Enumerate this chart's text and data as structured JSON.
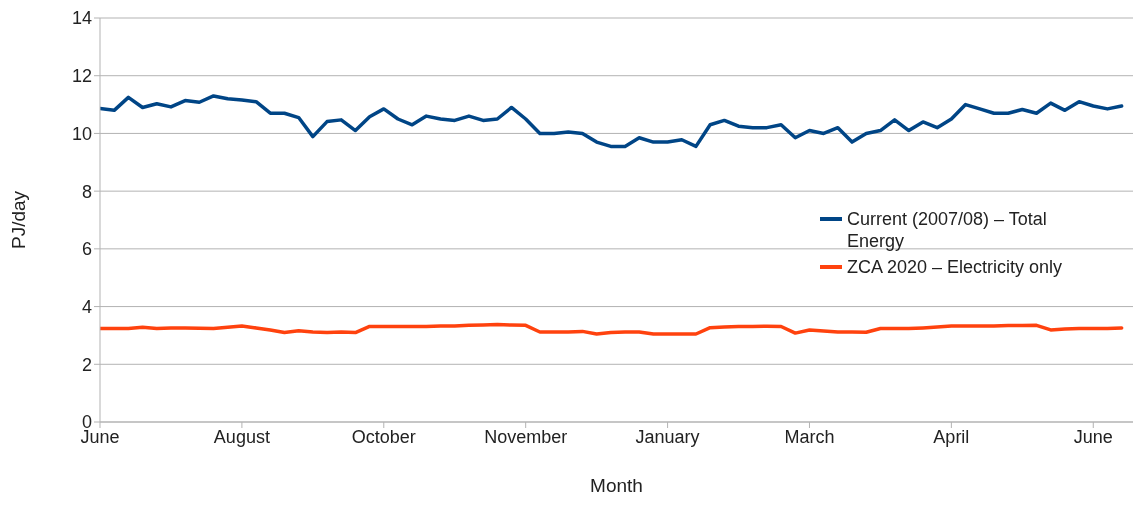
{
  "chart_data": {
    "type": "line",
    "xlabel": "Month",
    "ylabel": "PJ/day",
    "categories": [
      "June",
      null,
      null,
      null,
      null,
      null,
      null,
      null,
      null,
      null,
      "August",
      null,
      null,
      null,
      null,
      null,
      null,
      null,
      null,
      null,
      "October",
      null,
      null,
      null,
      null,
      null,
      null,
      null,
      null,
      null,
      "November",
      null,
      null,
      null,
      null,
      null,
      null,
      null,
      null,
      null,
      "January",
      null,
      null,
      null,
      null,
      null,
      null,
      null,
      null,
      null,
      "March",
      null,
      null,
      null,
      null,
      null,
      null,
      null,
      null,
      null,
      "April",
      null,
      null,
      null,
      null,
      null,
      null,
      null,
      null,
      null,
      "June",
      null,
      null
    ],
    "ylim": [
      0,
      14
    ],
    "yticks": [
      0,
      2,
      4,
      6,
      8,
      10,
      12,
      14
    ],
    "grid": "y",
    "legend": "right",
    "marker": "none",
    "line_style": "solid",
    "series": [
      {
        "name": "Current (2007/08) – Total Energy",
        "color": "#004586",
        "values": [
          10.86,
          10.8,
          11.25,
          10.9,
          11.03,
          10.92,
          11.14,
          11.08,
          11.3,
          11.2,
          11.16,
          11.1,
          10.7,
          10.7,
          10.55,
          9.89,
          10.41,
          10.47,
          10.1,
          10.58,
          10.85,
          10.5,
          10.3,
          10.6,
          10.5,
          10.45,
          10.6,
          10.45,
          10.5,
          10.9,
          10.5,
          10.0,
          10.0,
          10.05,
          10.0,
          9.7,
          9.55,
          9.55,
          9.85,
          9.7,
          9.7,
          9.78,
          9.55,
          10.3,
          10.45,
          10.25,
          10.2,
          10.2,
          10.3,
          9.85,
          10.1,
          10.0,
          10.2,
          9.7,
          10.0,
          10.1,
          10.47,
          10.1,
          10.4,
          10.2,
          10.5,
          11.0,
          10.85,
          10.7,
          10.7,
          10.83,
          10.7,
          11.05,
          10.8,
          11.1,
          10.95,
          10.85,
          10.95
        ]
      },
      {
        "name": "ZCA 2020 – Electricity only",
        "color": "#ff420e",
        "values": [
          3.24,
          3.24,
          3.24,
          3.28,
          3.24,
          3.26,
          3.26,
          3.25,
          3.24,
          3.28,
          3.33,
          3.26,
          3.19,
          3.1,
          3.16,
          3.12,
          3.1,
          3.12,
          3.1,
          3.31,
          3.31,
          3.31,
          3.31,
          3.31,
          3.33,
          3.33,
          3.35,
          3.36,
          3.38,
          3.36,
          3.35,
          3.12,
          3.12,
          3.12,
          3.14,
          3.05,
          3.1,
          3.12,
          3.12,
          3.05,
          3.05,
          3.05,
          3.05,
          3.27,
          3.29,
          3.31,
          3.31,
          3.32,
          3.31,
          3.08,
          3.19,
          3.15,
          3.12,
          3.12,
          3.11,
          3.24,
          3.24,
          3.24,
          3.26,
          3.29,
          3.33,
          3.33,
          3.33,
          3.33,
          3.34,
          3.34,
          3.35,
          3.19,
          3.22,
          3.24,
          3.24,
          3.24,
          3.26
        ]
      }
    ]
  }
}
